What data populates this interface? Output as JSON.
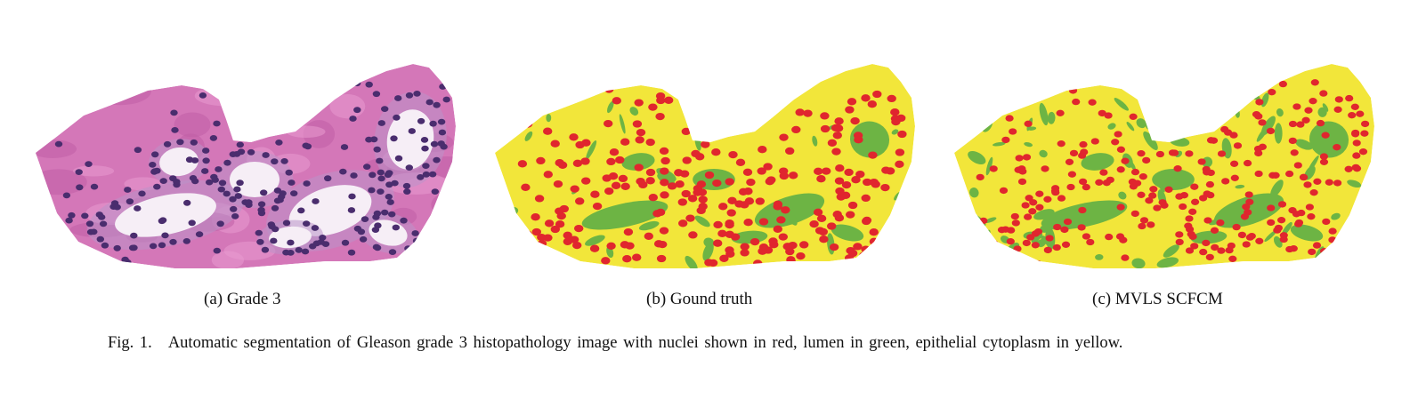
{
  "panels": [
    {
      "id": "a",
      "caption": "(a) Grade 3",
      "kind": "stained-tissue"
    },
    {
      "id": "b",
      "caption": "(b) Gound truth",
      "kind": "segmentation"
    },
    {
      "id": "c",
      "caption": "(c) MVLS SCFCM",
      "kind": "segmentation"
    }
  ],
  "figure": {
    "label": "Fig. 1.",
    "caption": "Automatic segmentation of Gleason grade 3 histopathology image with nuclei shown in red, lumen in green, epithelial cytoplasm in yellow."
  },
  "colors": {
    "tissue_stroma": "#d477b8",
    "tissue_nuclei": "#4a2d6e",
    "tissue_lumen": "#f6eef6",
    "seg_cytoplasm": "#f2e63a",
    "seg_nuclei": "#e0262e",
    "seg_lumen": "#6db444"
  }
}
